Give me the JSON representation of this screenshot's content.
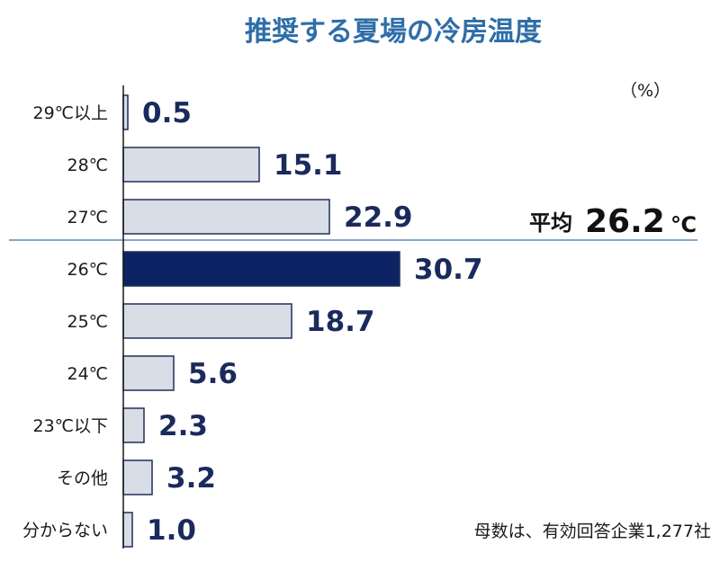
{
  "chart_data": {
    "type": "bar",
    "orientation": "horizontal",
    "title": "推奨する夏場の冷房温度",
    "unit_label": "（%）",
    "categories": [
      "29℃以上",
      "28℃",
      "27℃",
      "26℃",
      "25℃",
      "24℃",
      "23℃以下",
      "その他",
      "分からない"
    ],
    "values": [
      0.5,
      15.1,
      22.9,
      30.7,
      18.7,
      5.6,
      2.3,
      3.2,
      1.0
    ],
    "value_labels": [
      "0.5",
      "15.1",
      "22.9",
      "30.7",
      "18.7",
      "5.6",
      "2.3",
      "3.2",
      "1.0"
    ],
    "highlight_category": "26℃",
    "average": {
      "label": "平均",
      "value": "26.2",
      "unit": "℃"
    },
    "note": "母数は、有効回答企業1,277社",
    "colors": {
      "title": "#2e6ea7",
      "bar_fill": "#d8dde6",
      "bar_stroke": "#1f2f5a",
      "highlight_fill": "#0d2464",
      "value_text": "#1a2a5c",
      "axis": "#1a1a1a",
      "average_line": "#5b88b8"
    }
  }
}
